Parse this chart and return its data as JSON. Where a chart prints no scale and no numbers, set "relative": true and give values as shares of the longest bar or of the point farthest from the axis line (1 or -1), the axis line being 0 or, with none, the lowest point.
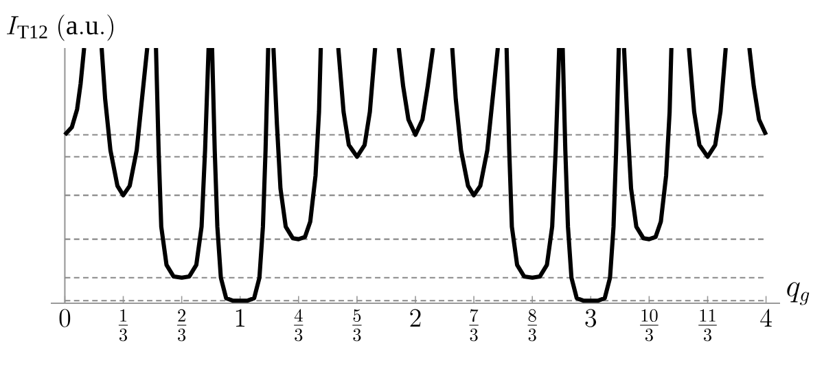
{
  "chart_data": {
    "type": "line",
    "relative": true,
    "ylabel": "I_{\\mathrm{T12}}\\ \\mathrm{(a.u.)}",
    "xlabel": "q_g",
    "xlim": [
      -0.08,
      4.08
    ],
    "xticks": [
      {
        "value": 0,
        "label": "0"
      },
      {
        "value": 0.3333,
        "label": "\\frac{1}{3}"
      },
      {
        "value": 0.6667,
        "label": "\\frac{2}{3}"
      },
      {
        "value": 1,
        "label": "1"
      },
      {
        "value": 1.3333,
        "label": "\\frac{4}{3}"
      },
      {
        "value": 1.6667,
        "label": "\\frac{5}{3}"
      },
      {
        "value": 2,
        "label": "2"
      },
      {
        "value": 2.3333,
        "label": "\\frac{7}{3}"
      },
      {
        "value": 2.6667,
        "label": "\\frac{8}{3}"
      },
      {
        "value": 3,
        "label": "3"
      },
      {
        "value": 3.3333,
        "label": "\\frac{10}{3}"
      },
      {
        "value": 3.6667,
        "label": "\\frac{11}{3}"
      },
      {
        "value": 4,
        "label": "4"
      }
    ],
    "ref_lines": [
      {
        "axis": "y",
        "value": 0.66,
        "color": "#888888",
        "line_style": "dashed"
      },
      {
        "axis": "y",
        "value": 0.574,
        "color": "#888888",
        "line_style": "dashed"
      },
      {
        "axis": "y",
        "value": 0.423,
        "color": "#888888",
        "line_style": "dashed"
      },
      {
        "axis": "y",
        "value": 0.251,
        "color": "#888888",
        "line_style": "dashed"
      },
      {
        "axis": "y",
        "value": 0.1,
        "color": "#888888",
        "line_style": "dashed"
      },
      {
        "axis": "y",
        "value": 0.01,
        "color": "#888888",
        "line_style": "dashed"
      }
    ],
    "marker": "none",
    "line_style": "solid",
    "series": [
      {
        "color": "#000000",
        "x": [
          0,
          0.04,
          0.07,
          0.09,
          0.11,
          0.16,
          0.21,
          0.23,
          0.26,
          0.3,
          0.333,
          0.37,
          0.41,
          0.44,
          0.47,
          0.495,
          0.52,
          0.535,
          0.55,
          0.58,
          0.62,
          0.667,
          0.71,
          0.75,
          0.78,
          0.8,
          0.82,
          0.83,
          0.84,
          0.855,
          0.87,
          0.89,
          0.92,
          0.96,
          1,
          1.04,
          1.08,
          1.11,
          1.13,
          1.145,
          1.16,
          1.175,
          1.19,
          1.21,
          1.23,
          1.26,
          1.3,
          1.333,
          1.37,
          1.4,
          1.43,
          1.45,
          1.46,
          1.51,
          1.56,
          1.59,
          1.62,
          1.667,
          1.71,
          1.74,
          1.77,
          1.84,
          1.905,
          1.93,
          1.96,
          2,
          2.04,
          2.07,
          2.1,
          2.15,
          2.21,
          2.23,
          2.26,
          2.3,
          2.333,
          2.37,
          2.41,
          2.44,
          2.47,
          2.495,
          2.52,
          2.535,
          2.55,
          2.58,
          2.62,
          2.667,
          2.71,
          2.75,
          2.78,
          2.8,
          2.82,
          2.83,
          2.84,
          2.855,
          2.87,
          2.89,
          2.92,
          2.96,
          3,
          3.04,
          3.08,
          3.11,
          3.13,
          3.145,
          3.16,
          3.175,
          3.19,
          3.21,
          3.23,
          3.26,
          3.3,
          3.333,
          3.37,
          3.4,
          3.43,
          3.45,
          3.46,
          3.51,
          3.56,
          3.59,
          3.62,
          3.667,
          3.71,
          3.74,
          3.77,
          3.84,
          3.905,
          3.93,
          3.96,
          4
        ],
        "values": [
          0.66,
          0.69,
          0.76,
          0.86,
          1,
          null,
          1,
          0.8,
          0.6,
          0.46,
          0.423,
          0.46,
          0.6,
          0.8,
          1,
          null,
          1,
          0.6,
          0.3,
          0.15,
          0.105,
          0.1,
          0.105,
          0.15,
          0.3,
          0.6,
          1,
          null,
          1,
          0.6,
          0.3,
          0.1,
          0.02,
          0.01,
          0.01,
          0.01,
          0.02,
          0.1,
          0.3,
          0.6,
          1,
          null,
          1,
          0.7,
          0.45,
          0.3,
          0.255,
          0.251,
          0.26,
          0.32,
          0.5,
          0.75,
          1,
          null,
          1,
          0.75,
          0.62,
          0.574,
          0.62,
          0.75,
          1,
          null,
          1,
          0.85,
          0.72,
          0.66,
          0.72,
          0.85,
          1,
          null,
          1,
          0.8,
          0.6,
          0.46,
          0.423,
          0.46,
          0.6,
          0.8,
          1,
          null,
          1,
          0.6,
          0.3,
          0.15,
          0.105,
          0.1,
          0.105,
          0.15,
          0.3,
          0.6,
          1,
          null,
          1,
          0.6,
          0.3,
          0.1,
          0.02,
          0.01,
          0.01,
          0.01,
          0.02,
          0.1,
          0.3,
          0.6,
          1,
          null,
          1,
          0.7,
          0.45,
          0.3,
          0.255,
          0.251,
          0.26,
          0.32,
          0.5,
          0.75,
          1,
          null,
          1,
          0.75,
          0.62,
          0.574,
          0.62,
          0.75,
          1,
          null,
          1,
          0.85,
          0.72,
          0.66
        ]
      }
    ]
  }
}
